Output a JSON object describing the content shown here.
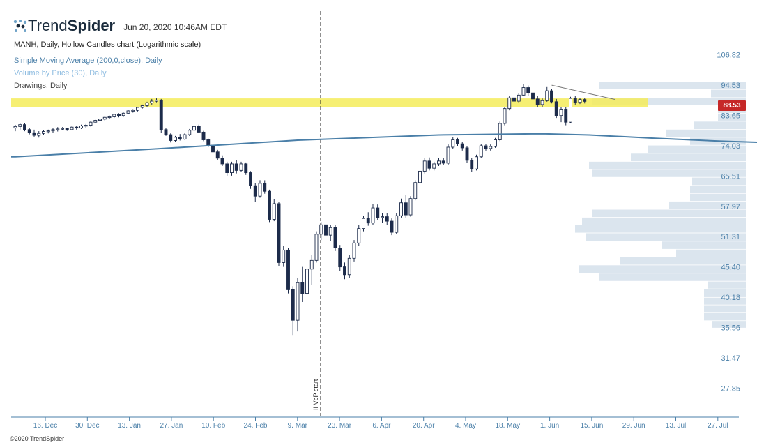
{
  "header": {
    "brand_light": "Trend",
    "brand_bold": "Spider",
    "timestamp": "Jun 20, 2020 10:46AM EDT"
  },
  "legend": {
    "chart_line": "MANH, Daily, Hollow Candles chart (Logarithmic scale)",
    "sma_line": "Simple Moving Average (200,0,close), Daily",
    "vbp_line": "Volume by Price (30), Daily",
    "drawings_line": "Drawings, Daily"
  },
  "current_price_label": "88.53",
  "copyright": "©2020 TrendSpider",
  "colors": {
    "candle": "#1c2b4a",
    "sma": "#4a7fa8",
    "vbp": "#dbe5ee",
    "zone": "#f5ec5a",
    "axis_text": "#4a7fa8",
    "price_badge": "#c62828"
  },
  "chart_data": {
    "type": "candlestick",
    "title": "MANH, Daily, Hollow Candles chart (Logarithmic scale)",
    "y_scale": "log",
    "y_ticks": [
      106.82,
      94.53,
      83.65,
      74.03,
      65.51,
      57.97,
      51.31,
      45.4,
      40.18,
      35.56,
      31.47,
      27.85
    ],
    "x_ticks": [
      "16. Dec",
      "30. Dec",
      "13. Jan",
      "27. Jan",
      "10. Feb",
      "24. Feb",
      "9. Mar",
      "23. Mar",
      "6. Apr",
      "20. Apr",
      "4. May",
      "18. May",
      "1. Jun",
      "15. Jun",
      "29. Jun",
      "13. Jul",
      "27. Jul"
    ],
    "vbp_start_label": "II VbP start",
    "candles": [
      [
        79.5,
        80.5,
        78.5,
        80.0
      ],
      [
        80.0,
        81.0,
        79.0,
        80.6
      ],
      [
        80.6,
        81.0,
        78.5,
        79.0
      ],
      [
        79.0,
        79.5,
        77.5,
        78.0
      ],
      [
        78.0,
        79.0,
        76.8,
        77.2
      ],
      [
        77.2,
        78.5,
        76.5,
        77.8
      ],
      [
        77.8,
        78.8,
        77.2,
        78.4
      ],
      [
        78.4,
        79.0,
        77.8,
        78.6
      ],
      [
        78.6,
        79.4,
        78.0,
        79.0
      ],
      [
        79.0,
        79.8,
        78.4,
        79.2
      ],
      [
        79.2,
        79.8,
        78.8,
        79.4
      ],
      [
        79.4,
        79.6,
        78.6,
        79.0
      ],
      [
        79.0,
        80.0,
        78.8,
        79.8
      ],
      [
        79.8,
        80.2,
        79.0,
        79.5
      ],
      [
        79.5,
        80.6,
        79.2,
        80.2
      ],
      [
        80.2,
        80.8,
        79.6,
        80.4
      ],
      [
        80.4,
        81.6,
        80.0,
        81.4
      ],
      [
        81.4,
        82.2,
        81.0,
        82.0
      ],
      [
        82.0,
        82.6,
        81.4,
        82.4
      ],
      [
        82.4,
        83.2,
        82.0,
        83.0
      ],
      [
        83.0,
        83.6,
        82.4,
        83.2
      ],
      [
        83.2,
        84.2,
        82.8,
        84.0
      ],
      [
        84.0,
        84.4,
        83.0,
        83.6
      ],
      [
        83.6,
        84.6,
        83.2,
        84.4
      ],
      [
        84.4,
        85.4,
        84.0,
        85.2
      ],
      [
        85.2,
        85.8,
        84.6,
        85.4
      ],
      [
        85.4,
        86.6,
        85.0,
        86.4
      ],
      [
        86.4,
        87.4,
        86.0,
        87.0
      ],
      [
        87.0,
        88.4,
        86.6,
        88.0
      ],
      [
        88.0,
        89.4,
        87.4,
        88.6
      ],
      [
        88.6,
        89.6,
        88.2,
        89.0
      ],
      [
        89.0,
        89.4,
        78.0,
        79.0
      ],
      [
        79.0,
        79.6,
        77.0,
        77.4
      ],
      [
        77.4,
        77.8,
        75.0,
        75.6
      ],
      [
        75.6,
        77.0,
        75.2,
        76.6
      ],
      [
        76.6,
        77.6,
        75.6,
        76.0
      ],
      [
        76.0,
        77.8,
        75.8,
        77.4
      ],
      [
        77.4,
        79.2,
        77.0,
        78.8
      ],
      [
        78.8,
        80.4,
        78.4,
        80.0
      ],
      [
        80.0,
        80.6,
        78.0,
        78.2
      ],
      [
        78.2,
        78.6,
        75.4,
        75.8
      ],
      [
        75.8,
        76.2,
        73.6,
        74.2
      ],
      [
        74.2,
        74.6,
        71.6,
        72.2
      ],
      [
        72.2,
        72.8,
        69.8,
        70.4
      ],
      [
        70.4,
        71.2,
        68.2,
        68.8
      ],
      [
        68.8,
        69.4,
        65.6,
        66.4
      ],
      [
        66.4,
        69.4,
        65.6,
        68.8
      ],
      [
        68.8,
        69.8,
        66.2,
        67.0
      ],
      [
        67.0,
        69.4,
        66.6,
        68.8
      ],
      [
        68.8,
        69.2,
        65.8,
        66.4
      ],
      [
        66.4,
        66.8,
        62.2,
        63.0
      ],
      [
        63.0,
        63.6,
        59.0,
        60.4
      ],
      [
        60.4,
        64.4,
        60.0,
        63.6
      ],
      [
        63.6,
        64.4,
        61.0,
        61.6
      ],
      [
        61.6,
        62.0,
        54.4,
        55.0
      ],
      [
        55.0,
        59.6,
        54.6,
        58.6
      ],
      [
        58.6,
        59.0,
        45.6,
        46.2
      ],
      [
        46.2,
        49.4,
        45.4,
        48.6
      ],
      [
        48.6,
        49.0,
        40.8,
        41.4
      ],
      [
        41.4,
        42.0,
        34.4,
        36.6
      ],
      [
        36.6,
        43.4,
        35.0,
        42.6
      ],
      [
        42.6,
        45.4,
        39.4,
        40.8
      ],
      [
        40.8,
        45.6,
        40.2,
        45.0
      ],
      [
        45.0,
        47.6,
        42.2,
        46.6
      ],
      [
        46.6,
        52.4,
        46.2,
        51.8
      ],
      [
        51.8,
        54.4,
        50.6,
        53.8
      ],
      [
        53.8,
        54.6,
        50.6,
        51.6
      ],
      [
        51.6,
        53.8,
        50.4,
        53.2
      ],
      [
        53.2,
        53.8,
        48.4,
        49.0
      ],
      [
        49.0,
        49.6,
        44.6,
        45.4
      ],
      [
        45.4,
        46.2,
        43.2,
        44.0
      ],
      [
        44.0,
        47.6,
        43.4,
        47.0
      ],
      [
        47.0,
        50.6,
        46.4,
        50.0
      ],
      [
        50.0,
        53.8,
        49.4,
        53.0
      ],
      [
        53.0,
        55.8,
        52.4,
        55.2
      ],
      [
        55.2,
        56.6,
        53.6,
        54.2
      ],
      [
        54.2,
        58.6,
        53.8,
        57.6
      ],
      [
        57.6,
        58.4,
        54.8,
        55.4
      ],
      [
        55.4,
        56.4,
        54.2,
        55.6
      ],
      [
        55.6,
        56.4,
        53.8,
        54.6
      ],
      [
        54.6,
        55.2,
        51.6,
        52.2
      ],
      [
        52.2,
        56.4,
        51.8,
        55.8
      ],
      [
        55.8,
        59.8,
        55.4,
        58.8
      ],
      [
        58.8,
        60.6,
        55.4,
        56.0
      ],
      [
        56.0,
        60.4,
        55.6,
        59.8
      ],
      [
        59.8,
        64.4,
        59.4,
        63.8
      ],
      [
        63.8,
        67.6,
        63.2,
        66.8
      ],
      [
        66.8,
        70.4,
        66.2,
        69.6
      ],
      [
        69.6,
        70.6,
        67.0,
        67.6
      ],
      [
        67.6,
        69.4,
        67.0,
        68.8
      ],
      [
        68.8,
        70.4,
        68.2,
        69.6
      ],
      [
        69.6,
        70.4,
        68.6,
        69.0
      ],
      [
        69.0,
        74.4,
        68.4,
        73.6
      ],
      [
        73.6,
        76.6,
        73.0,
        75.8
      ],
      [
        75.8,
        76.4,
        74.0,
        74.6
      ],
      [
        74.6,
        75.2,
        72.6,
        73.4
      ],
      [
        73.4,
        73.8,
        69.0,
        69.8
      ],
      [
        69.8,
        70.4,
        66.6,
        67.4
      ],
      [
        67.4,
        71.4,
        67.0,
        70.8
      ],
      [
        70.8,
        74.6,
        70.4,
        74.0
      ],
      [
        74.0,
        74.6,
        72.6,
        73.2
      ],
      [
        73.2,
        74.4,
        72.6,
        73.8
      ],
      [
        73.8,
        76.4,
        73.4,
        75.8
      ],
      [
        75.8,
        81.6,
        75.4,
        81.0
      ],
      [
        81.0,
        86.6,
        80.4,
        86.0
      ],
      [
        86.0,
        90.6,
        85.4,
        89.8
      ],
      [
        89.8,
        91.4,
        87.8,
        88.6
      ],
      [
        88.6,
        91.6,
        88.0,
        90.8
      ],
      [
        90.8,
        95.0,
        90.4,
        93.6
      ],
      [
        93.6,
        94.4,
        90.6,
        91.6
      ],
      [
        91.6,
        92.4,
        88.6,
        89.4
      ],
      [
        89.4,
        90.4,
        86.6,
        87.4
      ],
      [
        87.4,
        89.6,
        86.4,
        88.8
      ],
      [
        88.8,
        93.8,
        88.4,
        92.4
      ],
      [
        92.4,
        93.2,
        87.8,
        88.4
      ],
      [
        88.4,
        89.4,
        82.8,
        83.6
      ],
      [
        83.6,
        86.6,
        81.4,
        85.8
      ],
      [
        85.8,
        86.4,
        80.4,
        81.4
      ],
      [
        81.4,
        90.2,
        81.0,
        89.6
      ],
      [
        89.6,
        90.4,
        87.4,
        88.2
      ],
      [
        88.2,
        89.8,
        87.6,
        89.2
      ],
      [
        89.2,
        89.8,
        87.8,
        88.53
      ]
    ],
    "sma": [
      [
        0,
        70.8
      ],
      [
        30,
        73.1
      ],
      [
        60,
        75.7
      ],
      [
        90,
        77.3
      ],
      [
        112,
        77.7
      ],
      [
        122,
        77.3
      ],
      [
        136,
        76.3
      ],
      [
        150,
        75.4
      ],
      [
        170,
        74.5
      ],
      [
        192,
        74.1
      ],
      [
        210,
        74.0
      ],
      [
        228,
        74.1
      ],
      [
        235,
        73.9
      ],
      [
        250,
        74.0
      ],
      [
        265,
        74.1
      ]
    ],
    "vbp_profile": [
      [
        95.8,
        210
      ],
      [
        92.8,
        50
      ],
      [
        89.8,
        220
      ],
      [
        87.0,
        40
      ],
      [
        84.3,
        40
      ],
      [
        81.6,
        75
      ],
      [
        79.0,
        115
      ],
      [
        76.5,
        80
      ],
      [
        74.1,
        140
      ],
      [
        71.7,
        165
      ],
      [
        69.4,
        225
      ],
      [
        67.2,
        220
      ],
      [
        65.1,
        77
      ],
      [
        63.0,
        80
      ],
      [
        61.0,
        80
      ],
      [
        59.1,
        110
      ],
      [
        57.2,
        220
      ],
      [
        55.4,
        235
      ],
      [
        53.7,
        245
      ],
      [
        52.0,
        230
      ],
      [
        50.3,
        120
      ],
      [
        48.7,
        100
      ],
      [
        47.2,
        180
      ],
      [
        45.7,
        240
      ],
      [
        44.2,
        210
      ],
      [
        42.8,
        55
      ],
      [
        41.5,
        60
      ],
      [
        40.1,
        60
      ],
      [
        38.9,
        60
      ],
      [
        37.7,
        60
      ],
      [
        36.5,
        48
      ]
    ],
    "highlight_zone": [
      86.4,
      89.6
    ],
    "trendline": [
      [
        94.5,
        0
      ],
      [
        89.2,
        1
      ]
    ]
  }
}
